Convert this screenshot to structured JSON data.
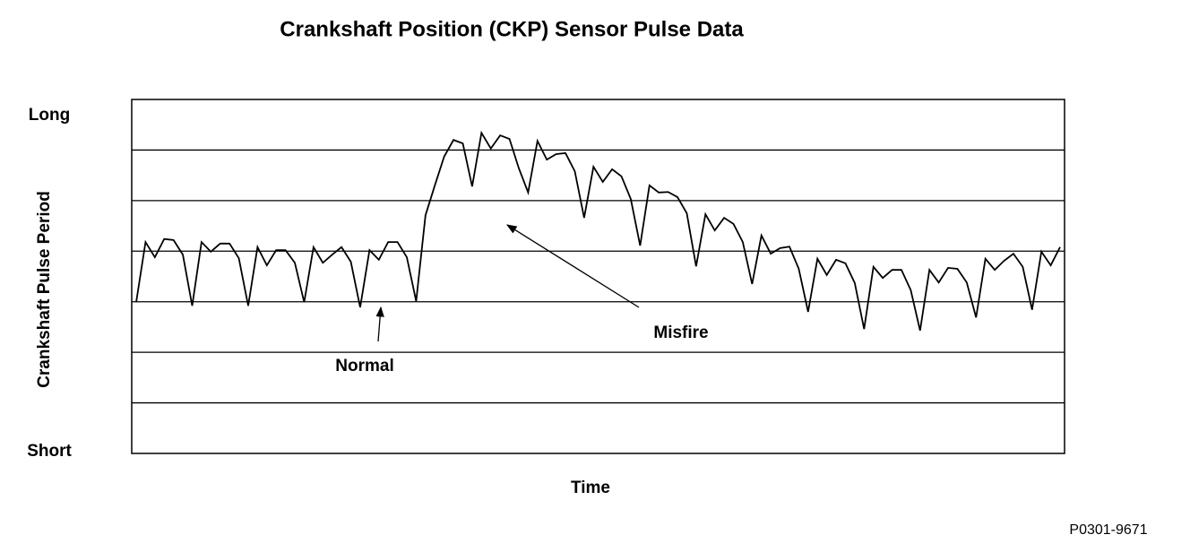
{
  "chart_data": {
    "type": "line",
    "title": "Crankshaft Position (CKP) Sensor Pulse Data",
    "ylabel": "Crankshaft Pulse Period",
    "xlabel": "Time",
    "annotations": [
      "Normal",
      "Misfire"
    ],
    "code": "P0301-9671",
    "color": "#000000",
    "grid": true,
    "ylim": [
      0,
      7
    ],
    "yticks": [
      {
        "value": 7,
        "label": "Long"
      },
      {
        "value": 0,
        "label": "Short"
      }
    ],
    "ygrid": [
      1,
      2,
      3,
      4,
      5,
      6
    ],
    "values": [
      2.99,
      4.18,
      3.88,
      4.24,
      4.22,
      3.93,
      2.92,
      4.18,
      3.99,
      4.15,
      4.15,
      3.86,
      2.92,
      4.08,
      3.72,
      4.02,
      4.02,
      3.77,
      2.99,
      4.08,
      3.77,
      3.93,
      4.08,
      3.79,
      2.89,
      4.02,
      3.83,
      4.18,
      4.18,
      3.88,
      3.01,
      4.71,
      5.3,
      5.87,
      6.2,
      6.13,
      5.28,
      6.34,
      6.03,
      6.29,
      6.22,
      5.64,
      5.16,
      6.18,
      5.81,
      5.92,
      5.94,
      5.58,
      4.66,
      5.67,
      5.37,
      5.62,
      5.48,
      5.03,
      4.11,
      5.3,
      5.16,
      5.17,
      5.07,
      4.75,
      3.7,
      4.73,
      4.41,
      4.66,
      4.54,
      4.18,
      3.35,
      4.31,
      3.95,
      4.06,
      4.09,
      3.65,
      2.8,
      3.85,
      3.53,
      3.83,
      3.76,
      3.37,
      2.46,
      3.69,
      3.47,
      3.63,
      3.63,
      3.23,
      2.43,
      3.63,
      3.38,
      3.67,
      3.65,
      3.38,
      2.69,
      3.85,
      3.63,
      3.81,
      3.95,
      3.69,
      2.84,
      3.99,
      3.72,
      4.08
    ]
  }
}
